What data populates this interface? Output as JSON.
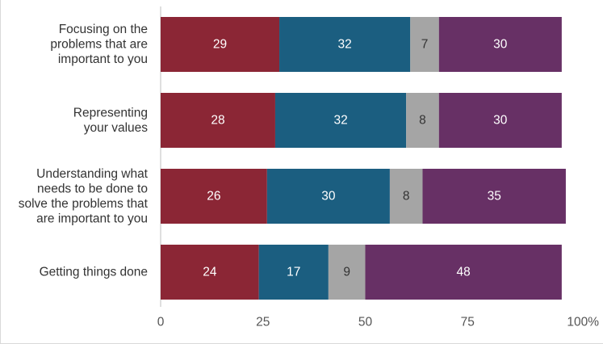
{
  "chart_data": {
    "type": "bar",
    "orientation": "horizontal",
    "stacked": true,
    "categories": [
      [
        "Focusing on the",
        "problems that are",
        "important to you"
      ],
      [
        "Representing",
        "your values"
      ],
      [
        "Understanding what",
        "needs to be done to",
        "solve the problems that",
        "are important to you"
      ],
      [
        "Getting things done"
      ]
    ],
    "series": [
      {
        "color": "#8b2635",
        "label_color": "#ffffff",
        "values": [
          29,
          28,
          26,
          24
        ]
      },
      {
        "color": "#1b5e80",
        "label_color": "#ffffff",
        "values": [
          32,
          32,
          30,
          17
        ]
      },
      {
        "color": "#a5a5a5",
        "label_color": "#333333",
        "values": [
          7,
          8,
          8,
          9
        ]
      },
      {
        "color": "#673065",
        "label_color": "#ffffff",
        "values": [
          30,
          30,
          35,
          48
        ]
      }
    ],
    "xlim": [
      0,
      100
    ],
    "xticks": [
      "0",
      "25",
      "50",
      "75",
      "100%"
    ],
    "grid": false,
    "legend": "none"
  }
}
